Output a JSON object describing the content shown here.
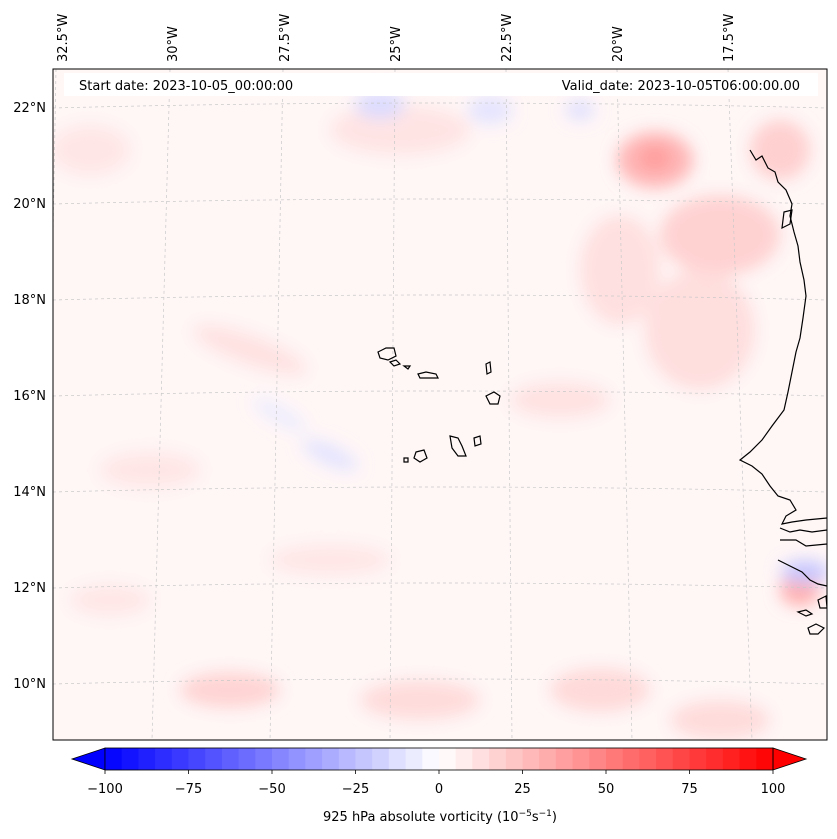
{
  "map": {
    "start_date": "Start date: 2023-10-05_00:00:00",
    "valid_date": "Valid_date: 2023-10-05T06:00:00.00",
    "lon_ticks": [
      "32.5°W",
      "30°W",
      "27.5°W",
      "25°W",
      "22.5°W",
      "20°W",
      "17.5°W"
    ],
    "lat_ticks": [
      "22°N",
      "20°N",
      "18°N",
      "16°N",
      "14°N",
      "12°N",
      "10°N"
    ],
    "colors": {
      "land_outline": "#000000",
      "gridline": "#c8c8c8",
      "background_field": "#fff6f6"
    }
  },
  "colorbar": {
    "label_prefix": "925 hPa absolute vorticity (10",
    "label_exp1": "−5",
    "label_mid": "s",
    "label_exp2": "−1",
    "label_suffix": ")",
    "ticks": [
      "−100",
      "−75",
      "−50",
      "−25",
      "0",
      "25",
      "50",
      "75",
      "100"
    ],
    "min": -100,
    "max": 100,
    "levels": 40,
    "extend": "both",
    "cmap": "bwr"
  }
}
